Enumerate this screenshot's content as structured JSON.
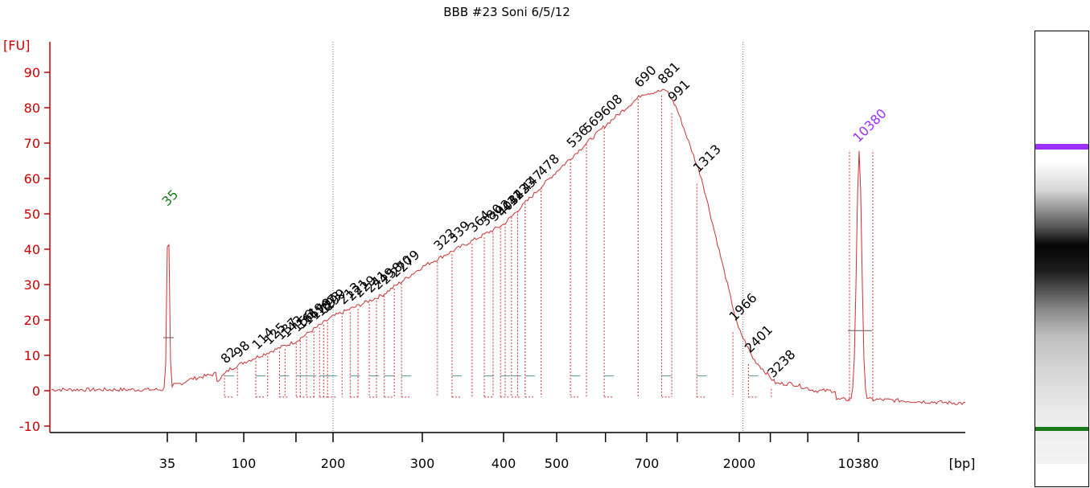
{
  "chart_data": {
    "type": "line",
    "title": "BBB #23 Soni 6/5/12",
    "ylabel": "[FU]",
    "xlabel": "[bp]",
    "ylim": [
      -12,
      95
    ],
    "yticks": [
      -10,
      0,
      10,
      20,
      30,
      40,
      50,
      60,
      70,
      80,
      90
    ],
    "xticks": [
      "35",
      "100",
      "200",
      "300",
      "400",
      "500",
      "700",
      "2000",
      "10380"
    ],
    "colors": {
      "axis": "#cc0000",
      "trace": "#c83232",
      "marker": "#1a7a1a",
      "upper_marker": "#9b30ff",
      "baseline": "#6aa0a0"
    },
    "series": [
      {
        "values_by_bp": [
          {
            "bp": 35,
            "fu": 50
          },
          {
            "bp": 82,
            "fu": 6
          },
          {
            "bp": 100,
            "fu": 8
          },
          {
            "bp": 150,
            "fu": 14
          },
          {
            "bp": 200,
            "fu": 21
          },
          {
            "bp": 250,
            "fu": 27
          },
          {
            "bp": 300,
            "fu": 35
          },
          {
            "bp": 400,
            "fu": 47
          },
          {
            "bp": 500,
            "fu": 62
          },
          {
            "bp": 600,
            "fu": 75
          },
          {
            "bp": 690,
            "fu": 84
          },
          {
            "bp": 881,
            "fu": 85
          },
          {
            "bp": 991,
            "fu": 80
          },
          {
            "bp": 1313,
            "fu": 60
          },
          {
            "bp": 1966,
            "fu": 18
          },
          {
            "bp": 2401,
            "fu": 9
          },
          {
            "bp": 3238,
            "fu": 2
          },
          {
            "bp": 10380,
            "fu": 68
          }
        ]
      }
    ],
    "peak_labels": [
      "35",
      "82",
      "98",
      "114",
      "125",
      "137",
      "143",
      "156",
      "161",
      "169",
      "179",
      "187",
      "193",
      "199",
      "213",
      "221",
      "229",
      "241",
      "249",
      "258",
      "270",
      "279",
      "322",
      "339",
      "364",
      "380",
      "392",
      "403",
      "411",
      "422",
      "433",
      "447",
      "478",
      "536",
      "569",
      "608",
      "690",
      "881",
      "991",
      "1313",
      "1966",
      "2401",
      "3238",
      "10380"
    ]
  }
}
